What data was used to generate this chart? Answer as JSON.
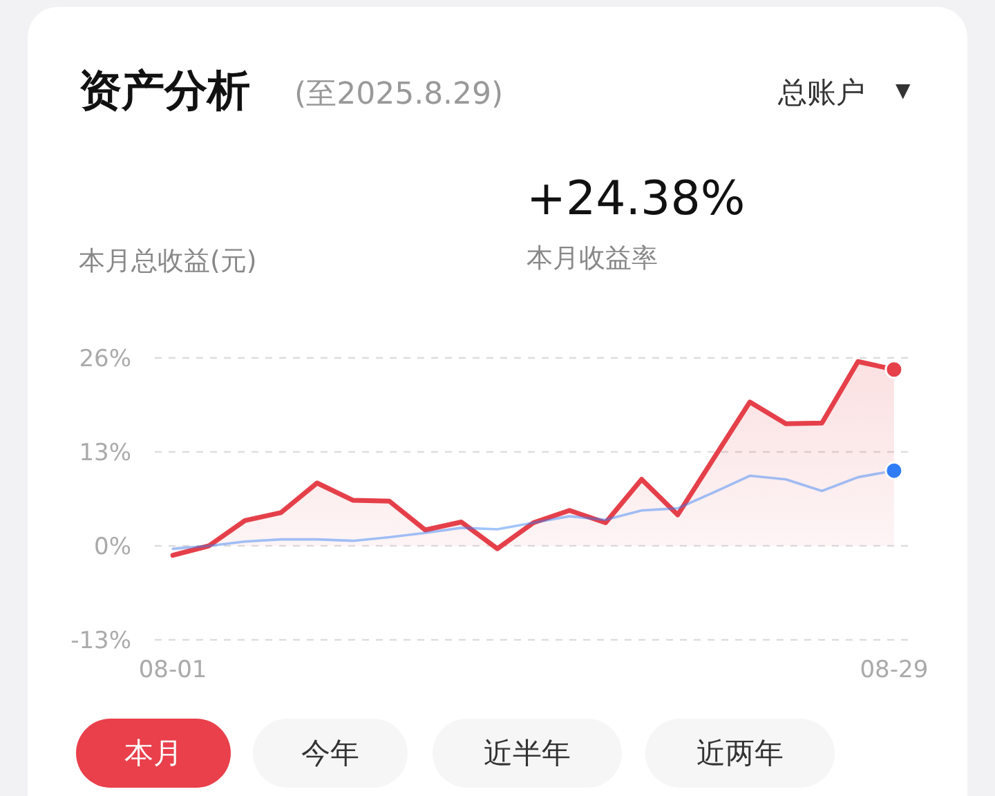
{
  "chart_data": {
    "type": "line",
    "title": "资产分析",
    "subtitle": "(至2025.8.29)",
    "annotations": [
      "总账户",
      "▼",
      "本月总收益(元)",
      "+24.38%",
      "本月收益率",
      "本月",
      "今年",
      "近半年",
      "近两年"
    ],
    "categories": [
      "08-01",
      null,
      null,
      null,
      null,
      null,
      null,
      null,
      null,
      null,
      null,
      null,
      null,
      null,
      null,
      null,
      null,
      null,
      null,
      null,
      "08-29"
    ],
    "series": [
      {
        "type": "area",
        "color": "#e5404a",
        "values": [
          -1.3,
          0,
          3.5,
          4.6,
          8.7,
          6.3,
          6.2,
          2.2,
          3.3,
          -0.4,
          3.2,
          4.9,
          3.2,
          9.2,
          4.3,
          12.1,
          19.9,
          16.9,
          17.0,
          25.5,
          24.4
        ]
      },
      {
        "type": "line",
        "color": "#2f7cf6",
        "values": [
          -0.4,
          0,
          0.6,
          0.9,
          0.9,
          0.7,
          1.2,
          1.8,
          2.5,
          2.3,
          3.2,
          4.1,
          3.6,
          4.9,
          5.2,
          7.4,
          9.7,
          9.2,
          7.6,
          9.5,
          10.4
        ]
      },
      {
        "type": "scatter",
        "color": "#e5404a",
        "values": [
          null,
          null,
          null,
          null,
          null,
          null,
          null,
          null,
          null,
          null,
          null,
          null,
          null,
          null,
          null,
          null,
          null,
          null,
          null,
          null,
          24.4
        ]
      },
      {
        "type": "scatter",
        "color": "#2f7cf6",
        "values": [
          null,
          null,
          null,
          null,
          null,
          null,
          null,
          null,
          null,
          null,
          null,
          null,
          null,
          null,
          null,
          null,
          null,
          null,
          null,
          null,
          10.4
        ]
      }
    ],
    "ylim": [
      -13,
      26
    ],
    "yticks": [
      {
        "value": -13,
        "label": "-13%"
      },
      {
        "value": 0,
        "label": "0%"
      },
      {
        "value": 13,
        "label": "13%"
      },
      {
        "value": 26,
        "label": "26%"
      }
    ],
    "grid": "y"
  }
}
